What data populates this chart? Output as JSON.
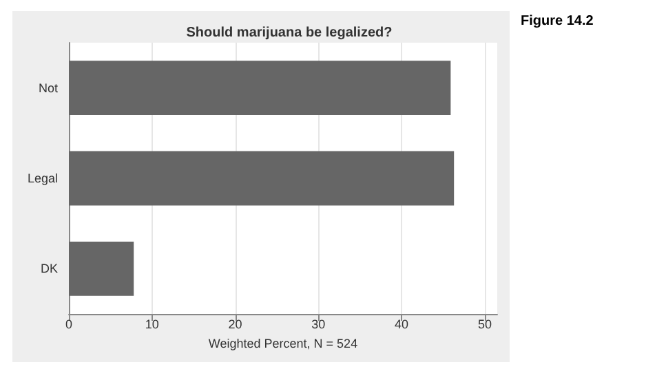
{
  "chart_data": {
    "type": "bar",
    "orientation": "horizontal",
    "title": "Should marijuana be legalized?",
    "xlabel": "Weighted Percent, N = 524",
    "categories": [
      "Not",
      "Legal",
      "DK"
    ],
    "values": [
      45.9,
      46.3,
      7.8
    ],
    "color": "#666666",
    "xlim": [
      0,
      51.5
    ],
    "xticks": [
      0,
      10,
      20,
      30,
      40,
      50
    ],
    "grid": "x",
    "annotations": [
      "Figure 14.2"
    ]
  }
}
